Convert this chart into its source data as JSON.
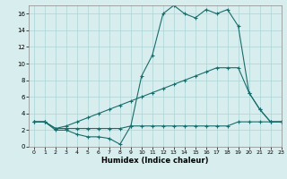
{
  "xlabel": "Humidex (Indice chaleur)",
  "bg_color": "#d8eeee",
  "grid_color": "#aed4d4",
  "line_color": "#1a6b6b",
  "xlim": [
    -0.5,
    23
  ],
  "ylim": [
    0,
    17
  ],
  "xticks": [
    0,
    1,
    2,
    3,
    4,
    5,
    6,
    7,
    8,
    9,
    10,
    11,
    12,
    13,
    14,
    15,
    16,
    17,
    18,
    19,
    20,
    21,
    22,
    23
  ],
  "yticks": [
    0,
    2,
    4,
    6,
    8,
    10,
    12,
    14,
    16
  ],
  "line1_x": [
    0,
    1,
    2,
    3,
    4,
    5,
    6,
    7,
    8,
    9,
    10,
    11,
    12,
    13,
    14,
    15,
    16,
    17,
    18,
    19,
    20,
    21,
    22,
    23
  ],
  "line1_y": [
    3,
    3,
    2,
    2,
    1.5,
    1.2,
    1.2,
    1,
    0.3,
    2.5,
    8.5,
    11,
    16,
    17,
    16,
    15.5,
    16.5,
    16,
    16.5,
    14.5,
    6.5,
    4.5,
    3,
    3
  ],
  "line2_x": [
    0,
    1,
    2,
    3,
    4,
    5,
    6,
    7,
    8,
    9,
    10,
    11,
    12,
    13,
    14,
    15,
    16,
    17,
    18,
    19,
    20,
    21,
    22,
    23
  ],
  "line2_y": [
    3,
    3,
    2.2,
    2.5,
    3,
    3.5,
    4,
    4.5,
    5,
    5.5,
    6,
    6.5,
    7,
    7.5,
    8,
    8.5,
    9,
    9.5,
    9.5,
    9.5,
    6.5,
    4.5,
    3,
    3
  ],
  "line3_x": [
    0,
    1,
    2,
    3,
    4,
    5,
    6,
    7,
    8,
    9,
    10,
    11,
    12,
    13,
    14,
    15,
    16,
    17,
    18,
    19,
    20,
    21,
    22,
    23
  ],
  "line3_y": [
    3,
    3,
    2.2,
    2.2,
    2.2,
    2.2,
    2.2,
    2.2,
    2.2,
    2.5,
    2.5,
    2.5,
    2.5,
    2.5,
    2.5,
    2.5,
    2.5,
    2.5,
    2.5,
    3,
    3,
    3,
    3,
    3
  ]
}
